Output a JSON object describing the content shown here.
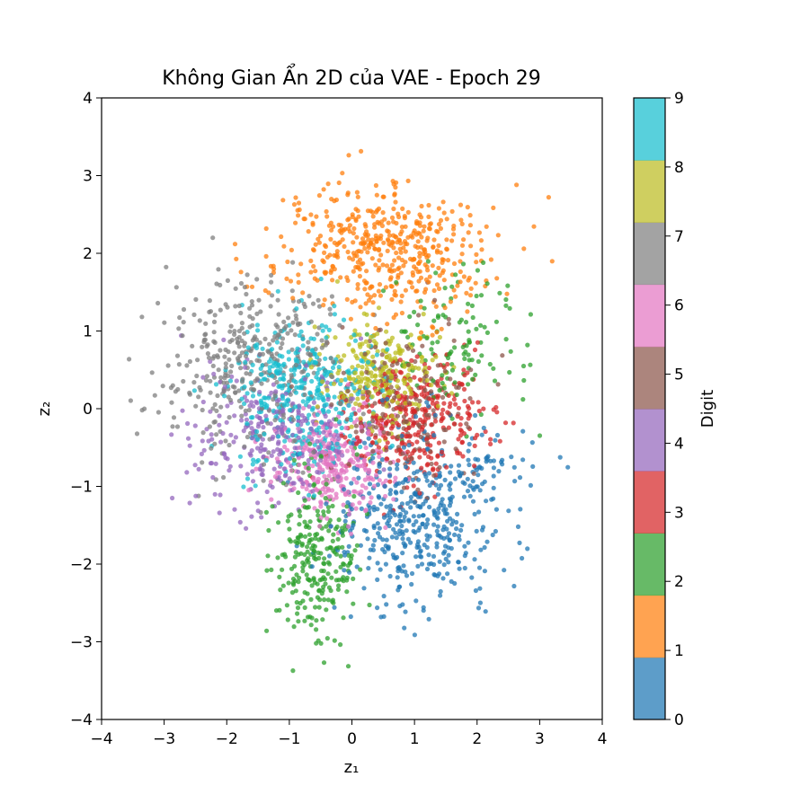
{
  "chart_data": {
    "type": "scatter",
    "title": "Không Gian Ẩn 2D của VAE - Epoch 29",
    "xlabel": "z₁",
    "ylabel": "z₂",
    "xlim": [
      -4,
      4
    ],
    "ylim": [
      -4,
      4
    ],
    "xticks": [
      "−4",
      "−3",
      "−2",
      "−1",
      "0",
      "1",
      "2",
      "3",
      "4"
    ],
    "yticks": [
      "−4",
      "−3",
      "−2",
      "−1",
      "0",
      "1",
      "2",
      "3",
      "4"
    ],
    "grid": false,
    "colorbar": {
      "label": "Digit",
      "ticks": [
        "0",
        "1",
        "2",
        "3",
        "4",
        "5",
        "6",
        "7",
        "8",
        "9"
      ],
      "range": [
        0,
        9
      ],
      "colors": [
        "#1f77b4",
        "#ff7f0e",
        "#2ca02c",
        "#d62728",
        "#9467bd",
        "#8c564b",
        "#e377c2",
        "#7f7f7f",
        "#bcbd22",
        "#17becf"
      ]
    },
    "series": [
      {
        "digit": 0,
        "center": [
          1.0,
          -1.4
        ],
        "spread": [
          0.65,
          0.55
        ],
        "count": 420
      },
      {
        "digit": 1,
        "center": [
          0.5,
          2.05
        ],
        "spread": [
          0.85,
          0.42
        ],
        "count": 480
      },
      {
        "digit": 2,
        "center": [
          -0.55,
          -1.9
        ],
        "spread": [
          0.35,
          0.55
        ],
        "count": 260
      },
      {
        "digit": 3,
        "center": [
          1.0,
          -0.15
        ],
        "spread": [
          0.55,
          0.4
        ],
        "count": 320
      },
      {
        "digit": 4,
        "center": [
          -1.2,
          -0.35
        ],
        "spread": [
          0.75,
          0.45
        ],
        "count": 300
      },
      {
        "digit": 5,
        "center": [
          0.8,
          0.05
        ],
        "spread": [
          0.55,
          0.5
        ],
        "count": 180
      },
      {
        "digit": 6,
        "center": [
          -0.25,
          -0.75
        ],
        "spread": [
          0.45,
          0.35
        ],
        "count": 300
      },
      {
        "digit": 7,
        "center": [
          -1.6,
          0.55
        ],
        "spread": [
          0.7,
          0.55
        ],
        "count": 380
      },
      {
        "digit": 8,
        "center": [
          0.45,
          0.45
        ],
        "spread": [
          0.45,
          0.35
        ],
        "count": 260
      },
      {
        "digit": 9,
        "center": [
          -0.8,
          0.2
        ],
        "spread": [
          0.55,
          0.45
        ],
        "count": 380
      }
    ],
    "extra_clusters": [
      {
        "digit": 2,
        "center": [
          1.6,
          0.9
        ],
        "spread": [
          0.6,
          0.5
        ],
        "count": 120
      },
      {
        "digit": 0,
        "center": [
          2.2,
          -0.9
        ],
        "spread": [
          0.5,
          0.35
        ],
        "count": 60
      }
    ]
  }
}
